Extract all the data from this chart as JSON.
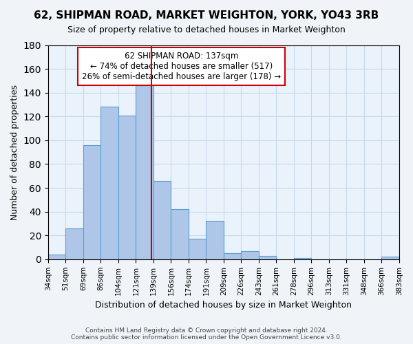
{
  "title": "62, SHIPMAN ROAD, MARKET WEIGHTON, YORK, YO43 3RB",
  "subtitle": "Size of property relative to detached houses in Market Weighton",
  "xlabel": "Distribution of detached houses by size in Market Weighton",
  "ylabel": "Number of detached properties",
  "bin_labels": [
    "34sqm",
    "51sqm",
    "69sqm",
    "86sqm",
    "104sqm",
    "121sqm",
    "139sqm",
    "156sqm",
    "174sqm",
    "191sqm",
    "209sqm",
    "226sqm",
    "243sqm",
    "261sqm",
    "278sqm",
    "296sqm",
    "313sqm",
    "331sqm",
    "348sqm",
    "366sqm",
    "383sqm"
  ],
  "bar_heights": [
    4,
    26,
    96,
    128,
    121,
    151,
    66,
    42,
    17,
    32,
    5,
    7,
    3,
    0,
    1,
    0,
    0,
    0,
    0,
    2
  ],
  "bar_color": "#aec6e8",
  "bar_edge_color": "#5a9fd4",
  "vline_color": "#cc0000",
  "annotation_text": "62 SHIPMAN ROAD: 137sqm\n← 74% of detached houses are smaller (517)\n26% of semi-detached houses are larger (178) →",
  "annotation_box_color": "#ffffff",
  "annotation_box_edge": "#cc0000",
  "ylim": [
    0,
    180
  ],
  "yticks": [
    0,
    20,
    40,
    60,
    80,
    100,
    120,
    140,
    160,
    180
  ],
  "grid_color": "#c8d8e8",
  "bg_color": "#eaf2fb",
  "fig_bg_color": "#f0f4f8",
  "footer": "Contains HM Land Registry data © Crown copyright and database right 2024.\nContains public sector information licensed under the Open Government Licence v3.0."
}
